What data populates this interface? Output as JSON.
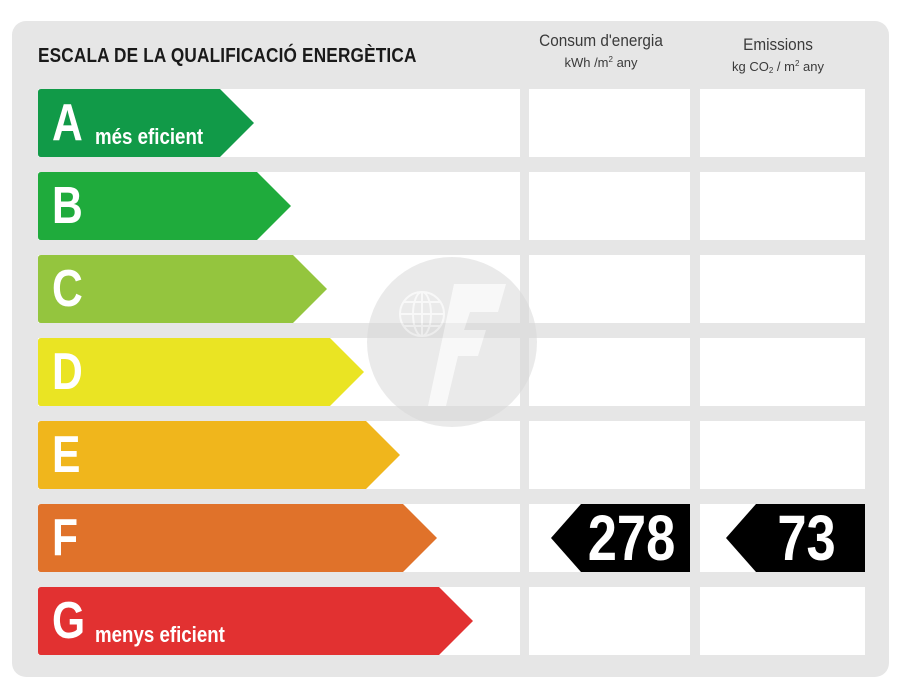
{
  "title": "ESCALA DE LA QUALIFICACIÓ ENERGÈTICA",
  "columns": {
    "consum": {
      "label": "Consum d'energia",
      "unit_prefix": "kWh /m",
      "unit_exp": "2",
      "unit_suffix": " any"
    },
    "emissions": {
      "label": "Emissions",
      "unit_a": "kg CO",
      "unit_sub": "2",
      "unit_b": " / m",
      "unit_exp": "2",
      "unit_suffix": " any"
    }
  },
  "ratings": [
    {
      "letter": "A",
      "sublabel": "més eficient",
      "color": "#119a48"
    },
    {
      "letter": "B",
      "sublabel": "",
      "color": "#1fab3c"
    },
    {
      "letter": "C",
      "sublabel": "",
      "color": "#94c53e"
    },
    {
      "letter": "D",
      "sublabel": "",
      "color": "#eae423"
    },
    {
      "letter": "E",
      "sublabel": "",
      "color": "#f0b61c"
    },
    {
      "letter": "F",
      "sublabel": "",
      "color": "#e0722a"
    },
    {
      "letter": "G",
      "sublabel": "menys eficient",
      "color": "#e23131"
    }
  ],
  "current_rating": "F",
  "consum_value": "278",
  "emissions_value": "73",
  "value_color": "#000000"
}
